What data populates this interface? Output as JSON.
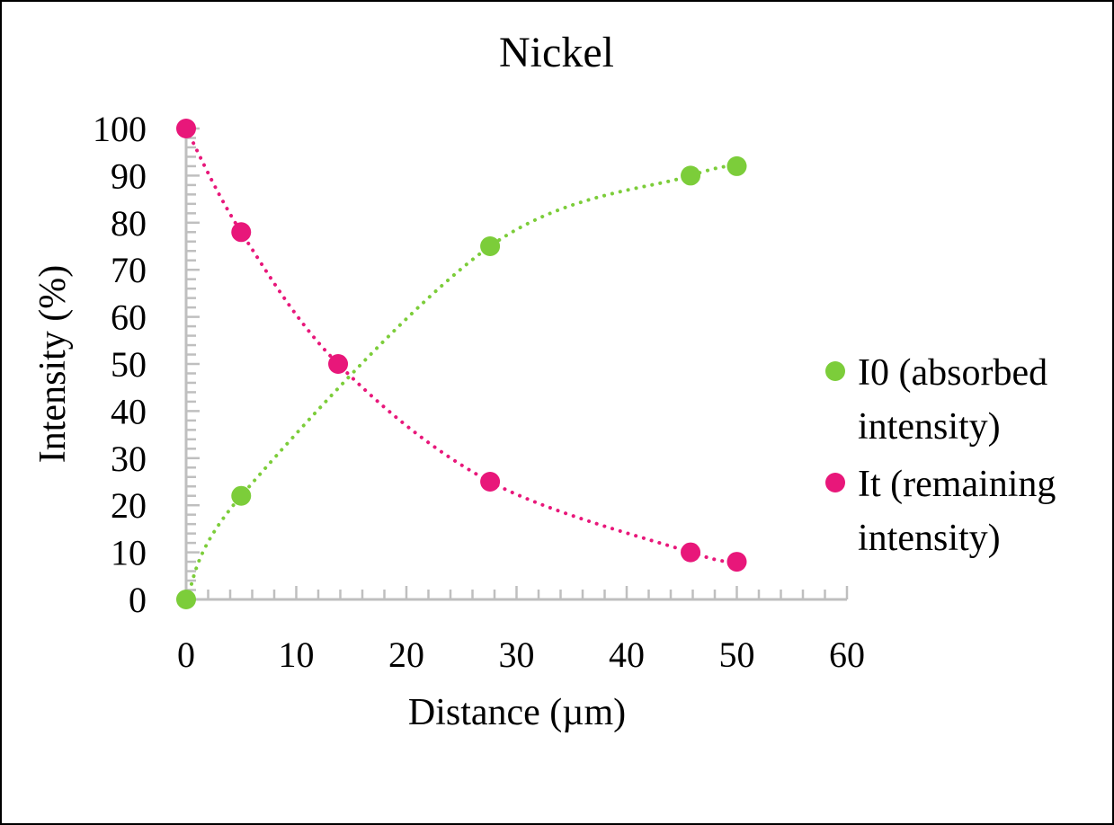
{
  "chart_data": {
    "type": "scatter",
    "title": "Nickel",
    "xlabel": "Distance (µm)",
    "ylabel": "Intensity (%)",
    "xlim": [
      0,
      60
    ],
    "ylim": [
      0,
      100
    ],
    "xticks": [
      0,
      10,
      20,
      30,
      40,
      50,
      60
    ],
    "yticks": [
      0,
      10,
      20,
      30,
      40,
      50,
      60,
      70,
      80,
      90,
      100
    ],
    "grid": false,
    "legend_position": "right",
    "trendline": "dotted smooth",
    "series": [
      {
        "name": "I0 (absorbed intensity)",
        "color": "#7ccd3a",
        "x": [
          0,
          5,
          27.6,
          45.8,
          50
        ],
        "y": [
          0,
          22,
          75,
          90,
          92
        ]
      },
      {
        "name": "It (remaining intensity)",
        "color": "#e8177a",
        "x": [
          0,
          5,
          13.8,
          27.6,
          45.8,
          50
        ],
        "y": [
          100,
          78,
          50,
          25,
          10,
          8
        ]
      }
    ],
    "legend_lines": [
      [
        "I0 (absorbed",
        "intensity)"
      ],
      [
        "It (remaining",
        "intensity)"
      ]
    ]
  }
}
